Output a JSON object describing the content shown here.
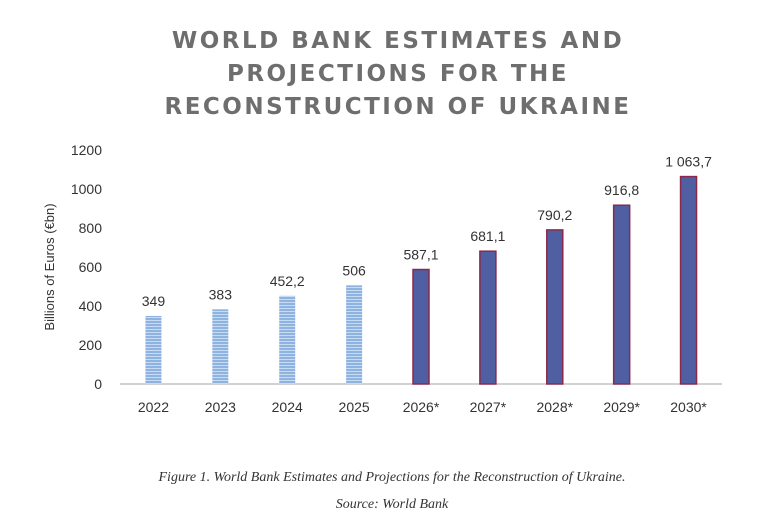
{
  "chart_data": {
    "type": "bar",
    "title_lines": [
      "WORLD BANK ESTIMATES AND",
      "PROJECTIONS FOR THE",
      "RECONSTRUCTION OF UKRAINE"
    ],
    "ylabel": "Billions of Euros (€bn)",
    "xlabel": "",
    "ylim": [
      0,
      1200
    ],
    "yticks": [
      0,
      200,
      400,
      600,
      800,
      1000,
      1200
    ],
    "categories": [
      "2022",
      "2023",
      "2024",
      "2025",
      "2026*",
      "2027*",
      "2028*",
      "2029*",
      "2030*"
    ],
    "values": [
      349,
      383,
      452.2,
      506,
      587.1,
      681.1,
      790.2,
      916.8,
      1063.7
    ],
    "data_labels": [
      "349",
      "383",
      "452,2",
      "506",
      "587,1",
      "681,1",
      "790,2",
      "916,8",
      "1 063,7"
    ],
    "estimate_color": "#8fb3e0",
    "projection_color": "#4f5fa2",
    "projection_outline": "#8a2a4a",
    "grid": false,
    "legend": "none"
  },
  "caption": {
    "line1": "Figure 1. World Bank Estimates and Projections for the Reconstruction of Ukraine.",
    "line2": "Source: World Bank"
  }
}
